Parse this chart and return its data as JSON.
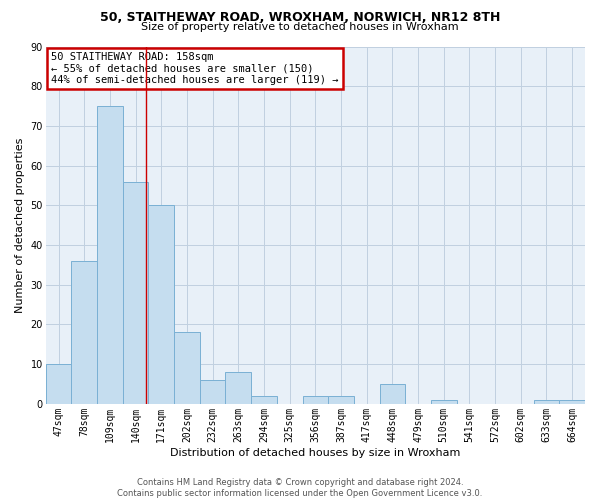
{
  "title": "50, STAITHEWAY ROAD, WROXHAM, NORWICH, NR12 8TH",
  "subtitle": "Size of property relative to detached houses in Wroxham",
  "xlabel": "Distribution of detached houses by size in Wroxham",
  "ylabel": "Number of detached properties",
  "bar_labels": [
    "47sqm",
    "78sqm",
    "109sqm",
    "140sqm",
    "171sqm",
    "202sqm",
    "232sqm",
    "263sqm",
    "294sqm",
    "325sqm",
    "356sqm",
    "387sqm",
    "417sqm",
    "448sqm",
    "479sqm",
    "510sqm",
    "541sqm",
    "572sqm",
    "602sqm",
    "633sqm",
    "664sqm"
  ],
  "bar_values": [
    10,
    36,
    75,
    56,
    50,
    18,
    6,
    8,
    2,
    0,
    2,
    2,
    0,
    5,
    0,
    1,
    0,
    0,
    0,
    1,
    1
  ],
  "bar_color": "#c5ddef",
  "bar_edge_color": "#7ab0d4",
  "ylim": [
    0,
    90
  ],
  "yticks": [
    0,
    10,
    20,
    30,
    40,
    50,
    60,
    70,
    80,
    90
  ],
  "property_label": "50 STAITHEWAY ROAD: 158sqm",
  "annotation_line1": "← 55% of detached houses are smaller (150)",
  "annotation_line2": "44% of semi-detached houses are larger (119) →",
  "annotation_box_facecolor": "#ffffff",
  "annotation_box_edgecolor": "#cc0000",
  "vline_color": "#cc0000",
  "vline_x": 3.4,
  "footer_line1": "Contains HM Land Registry data © Crown copyright and database right 2024.",
  "footer_line2": "Contains public sector information licensed under the Open Government Licence v3.0.",
  "background_color": "#ffffff",
  "plot_bg_color": "#e8f0f8",
  "grid_color": "#c0d0e0",
  "title_fontsize": 9,
  "subtitle_fontsize": 8,
  "axis_label_fontsize": 8,
  "tick_fontsize": 7,
  "annotation_fontsize": 7.5,
  "footer_fontsize": 6
}
